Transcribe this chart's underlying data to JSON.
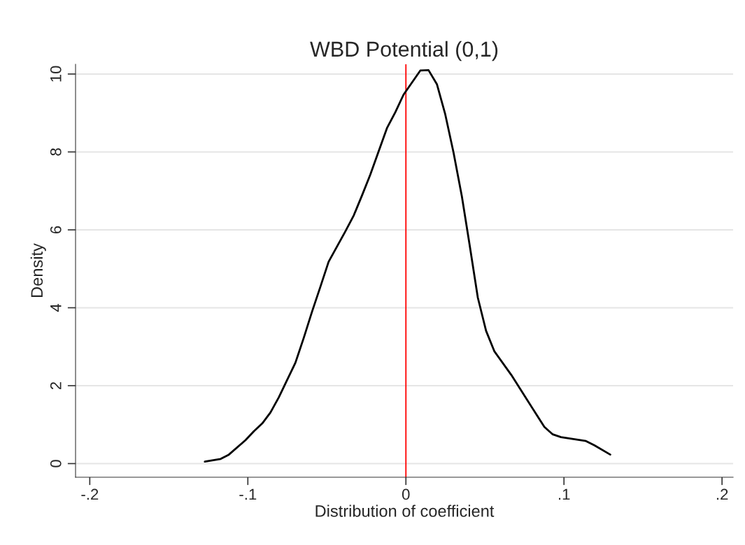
{
  "chart_data": {
    "type": "line",
    "title": "WBD Potential (0,1)",
    "xlabel": "Distribution of coefficient",
    "ylabel": "Density",
    "series": [
      {
        "color": "#000000",
        "x": [
          -0.1272,
          -0.1172,
          -0.112,
          -0.1015,
          -0.0962,
          -0.0909,
          -0.0857,
          -0.0804,
          -0.0751,
          -0.0699,
          -0.0646,
          -0.0594,
          -0.0541,
          -0.0489,
          -0.0436,
          -0.0383,
          -0.033,
          -0.0278,
          -0.0225,
          -0.0172,
          -0.012,
          -0.0067,
          -0.0015,
          0.0038,
          0.0091,
          0.0143,
          0.0196,
          0.0248,
          0.0301,
          0.0354,
          0.0402,
          0.0455,
          0.0507,
          0.056,
          0.0666,
          0.0771,
          0.0876,
          0.0929,
          0.0981,
          0.1139,
          0.1192,
          0.1293
        ],
        "values": [
          0.05,
          0.12,
          0.23,
          0.6,
          0.83,
          1.03,
          1.31,
          1.7,
          2.15,
          2.59,
          3.23,
          3.9,
          4.54,
          5.18,
          5.57,
          5.96,
          6.37,
          6.88,
          7.42,
          8.02,
          8.61,
          9.02,
          9.47,
          9.78,
          10.09,
          10.1,
          9.74,
          8.98,
          7.99,
          6.86,
          5.64,
          4.26,
          3.41,
          2.88,
          2.28,
          1.61,
          0.94,
          0.75,
          0.68,
          0.58,
          0.47,
          0.23
        ]
      }
    ],
    "xlim": [
      -0.209,
      0.207
    ],
    "ylim": [
      -0.35,
      10.25
    ],
    "xticks": [
      {
        "value": -0.2,
        "label": "-.2"
      },
      {
        "value": -0.1,
        "label": "-.1"
      },
      0,
      {
        "value": 0.1,
        "label": ".1"
      },
      {
        "value": 0.2,
        "label": ".2"
      }
    ],
    "yticks": [
      0,
      2,
      4,
      6,
      8,
      10
    ],
    "ref_lines": [
      {
        "axis": "x",
        "value": 0,
        "color": "#ff0000"
      }
    ],
    "grid": "y",
    "marker": "none",
    "line_style": "solid"
  }
}
